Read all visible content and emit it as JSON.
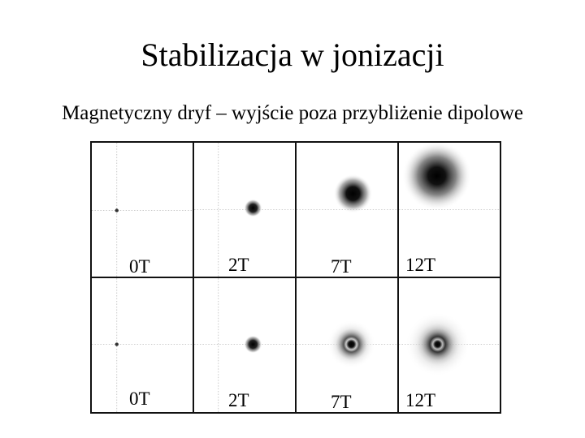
{
  "slide": {
    "title": "Stabilizacja w jonizacji",
    "subtitle": "Magnetyczny dryf – wyjście poza przybliżenie dipolowe"
  },
  "figure": {
    "panels": [
      {
        "label": "0T",
        "row": 0,
        "col": 0,
        "blob": "dot"
      },
      {
        "label": "2T",
        "row": 0,
        "col": 1,
        "blob": "small"
      },
      {
        "label": "7T",
        "row": 0,
        "col": 2,
        "blob": "medium-drift"
      },
      {
        "label": "12T",
        "row": 0,
        "col": 3,
        "blob": "large-drift"
      },
      {
        "label": "0T",
        "row": 1,
        "col": 0,
        "blob": "dot"
      },
      {
        "label": "2T",
        "row": 1,
        "col": 1,
        "blob": "small"
      },
      {
        "label": "7T",
        "row": 1,
        "col": 2,
        "blob": "ringed"
      },
      {
        "label": "12T",
        "row": 1,
        "col": 3,
        "blob": "ringed-large"
      }
    ]
  }
}
